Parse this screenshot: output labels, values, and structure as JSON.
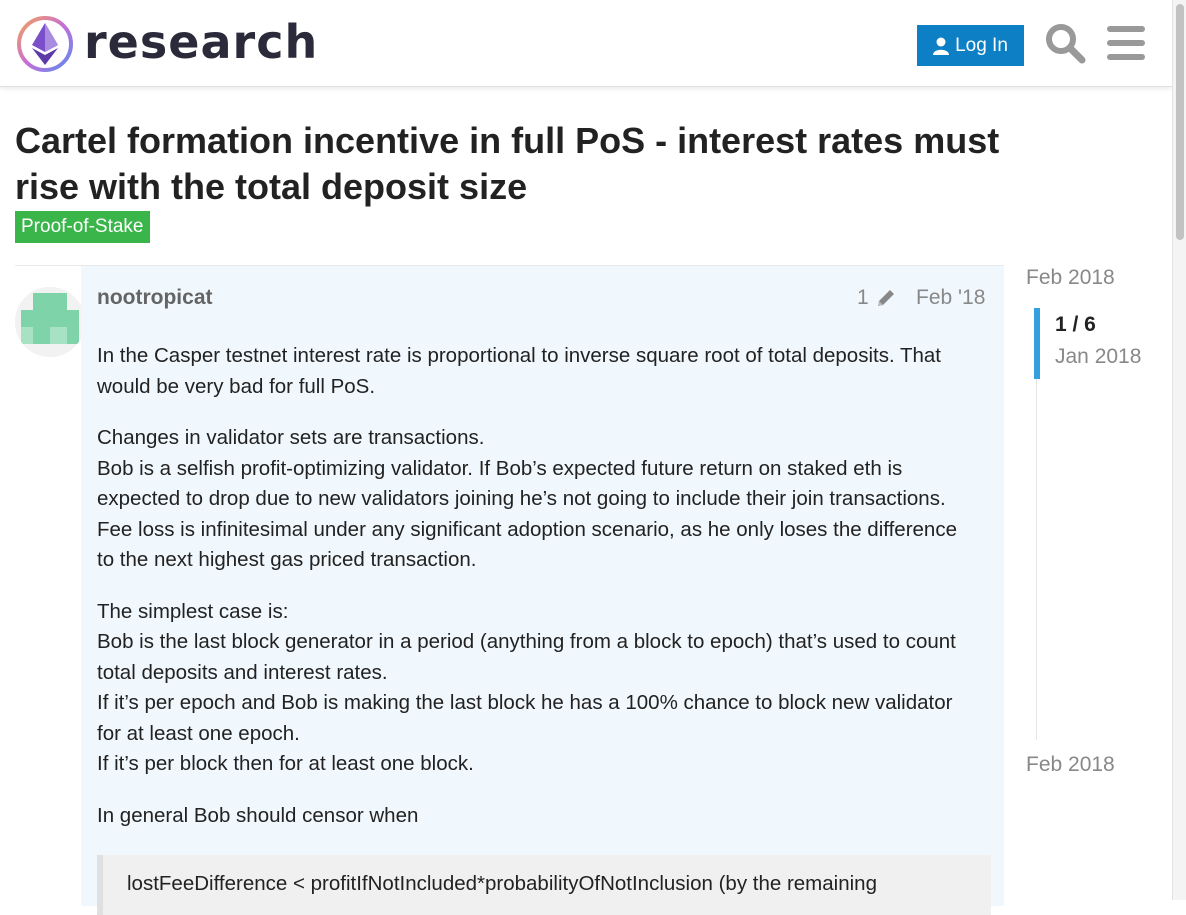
{
  "header": {
    "logo_text": "research",
    "login_label": "Log In"
  },
  "topic": {
    "title": "Cartel formation incentive in full PoS - interest rates must rise with the total deposit size",
    "category": "Proof-of-Stake",
    "category_color": "#3ab54a"
  },
  "post": {
    "username": "nootropicat",
    "edit_count": "1",
    "date": "Feb '18",
    "paragraphs": [
      [
        "In the Casper testnet interest rate is proportional to inverse square root of total deposits. That would be very bad for full PoS."
      ],
      [
        "Changes in validator sets are transactions.",
        "Bob is a selfish profit-optimizing validator. If Bob’s expected future return on staked eth is expected to drop due to new validators joining he’s not going to include their join transactions. Fee loss is infinitesimal under any significant adoption scenario, as he only loses the difference to the next highest gas priced transaction."
      ],
      [
        "The simplest case is:",
        "Bob is the last block generator in a period (anything from a block to epoch) that’s used to count total deposits and interest rates.",
        "If it’s per epoch and Bob is making the last block he has a 100% chance to block new validator for at least one epoch.",
        "If it’s per block then for at least one block."
      ],
      [
        "In general Bob should censor when"
      ]
    ],
    "quote": "lostFeeDifference < profitIfNotIncluded*probabilityOfNotInclusion (by the remaining"
  },
  "timeline": {
    "start": "Feb 2018",
    "position": "1 / 6",
    "position_date": "Jan 2018",
    "end": "Feb 2018"
  },
  "colors": {
    "accent": "#0d7fc5",
    "timeline_handle": "#34a0e0",
    "post_background": "#f1f8fd"
  },
  "icons": {
    "logo": "ethresearch-logo-icon",
    "login": "user-icon",
    "search": "search-icon",
    "menu": "hamburger-menu-icon",
    "edit": "pencil-icon"
  }
}
